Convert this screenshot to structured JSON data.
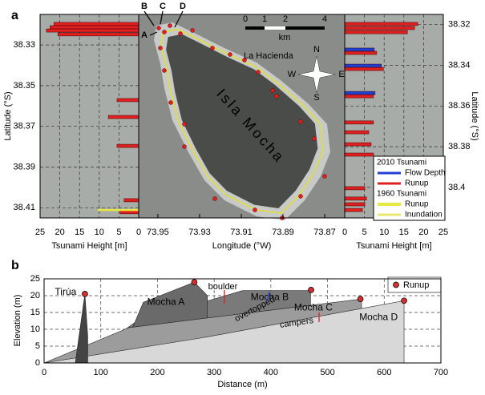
{
  "chart_data": [
    {
      "type": "barh",
      "panel": "a",
      "xlabel": "Tsunami Height [m]",
      "ylabel": "Latitude (°S)",
      "xlim": [
        25,
        0
      ],
      "xticks": [
        25,
        20,
        15,
        10,
        5,
        0
      ],
      "ylim": [
        38.315,
        38.415
      ],
      "yticks": [
        38.33,
        38.35,
        38.37,
        38.39,
        38.41
      ],
      "grid": true,
      "series": [
        {
          "color": "#e02020",
          "latitudes": [
            38.3197,
            38.3213,
            38.3229,
            38.3248,
            38.3571,
            38.3654,
            38.3796,
            38.4063,
            38.4122
          ],
          "values": [
            21.5,
            22.5,
            23.4,
            20.5,
            5.5,
            7.7,
            5.5,
            3.7,
            4.7
          ]
        },
        {
          "color": "#e8e840",
          "style": "line",
          "latitudes": [
            38.4111
          ],
          "values": [
            10.4
          ]
        }
      ]
    },
    {
      "type": "map",
      "xlabel": "Longitude (°W)",
      "xlim": [
        73.9592,
        73.8604
      ],
      "xticks": [
        73.95,
        73.93,
        73.91,
        73.89,
        73.87
      ],
      "site_labels": [
        "B",
        "C",
        "D",
        "A"
      ],
      "place": "La Hacienda",
      "island": "Isla Mocha",
      "scale_labels": [
        "0",
        "1",
        "2",
        "4"
      ],
      "scale_unit": "km",
      "compass": [
        "N",
        "S",
        "W",
        "E"
      ],
      "legend": [
        {
          "title": "2010 Tsunami",
          "entries": [
            {
              "name": "Flow Depth",
              "color": "#1f3fd0"
            },
            {
              "name": "Runup",
              "color": "#e02020"
            }
          ]
        },
        {
          "title": "1960 Tsunami",
          "entries": [
            {
              "name": "Runup",
              "color": "#e8e840"
            },
            {
              "name": "Inundation",
              "color": "#e8e870"
            }
          ]
        }
      ]
    },
    {
      "type": "barh",
      "xlabel": "Tsunami Height [m]",
      "ylabel": "Latitude (°S)",
      "xlim": [
        0,
        25
      ],
      "xticks": [
        0,
        5,
        10,
        15,
        20,
        25
      ],
      "ylim": [
        38.315,
        38.415
      ],
      "yticks": [
        38.32,
        38.34,
        38.36,
        38.38,
        38.4
      ],
      "grid": true,
      "series": [
        {
          "color": "#e02020",
          "latitudes": [
            38.3197,
            38.3217,
            38.3237,
            38.3339,
            38.3418,
            38.3552,
            38.3681,
            38.3729,
            38.3788,
            38.3839,
            38.4004,
            38.4055,
            38.4083,
            38.4111
          ],
          "values": [
            18.5,
            17.7,
            15.9,
            8.1,
            9.8,
            7.3,
            7.3,
            6.1,
            6.7,
            7.3,
            5.1,
            5.5,
            5.1,
            4.5
          ]
        },
        {
          "color": "#1f3fd0",
          "latitudes": [
            38.3323,
            38.3402,
            38.3536
          ],
          "values": [
            7.5,
            9.3,
            7.7
          ]
        }
      ]
    },
    {
      "type": "profile",
      "panel": "b",
      "xlabel": "Distance (m)",
      "ylabel": "Elevation (m)",
      "xlim": [
        0,
        700
      ],
      "xticks": [
        0,
        100,
        200,
        300,
        400,
        500,
        600,
        700
      ],
      "ylim": [
        0,
        25
      ],
      "yticks": [
        0,
        5,
        10,
        15,
        20,
        25
      ],
      "grid": true,
      "series": [
        {
          "name": "Mocha B",
          "color": "#7a7a7a",
          "x": [
            60,
            160,
            350,
            470,
            470
          ],
          "values": [
            0,
            12,
            21.5,
            21.5,
            0
          ]
        },
        {
          "name": "Mocha A",
          "color": "#6a6a6a",
          "x": [
            130,
            175,
            265,
            288,
            288
          ],
          "values": [
            0,
            18,
            24,
            20,
            0
          ]
        },
        {
          "name": "Mocha C",
          "color": "#9c9c9c",
          "x": [
            0,
            150,
            560,
            560
          ],
          "values": [
            0,
            10.5,
            19,
            0
          ]
        },
        {
          "name": "Mocha D",
          "color": "#d8d8d8",
          "x": [
            0,
            280,
            635,
            635
          ],
          "values": [
            0,
            7.5,
            18.5,
            0
          ]
        },
        {
          "name": "Tirúa",
          "color": "#444444",
          "x": [
            55,
            72,
            77,
            77
          ],
          "values": [
            0,
            20.5,
            8,
            0
          ]
        }
      ],
      "runup": {
        "name": "Runup",
        "color": "#d03030",
        "x": [
          72,
          265,
          471,
          558,
          635
        ],
        "values": [
          20.5,
          24,
          21.7,
          19,
          18.5
        ]
      },
      "annotations": [
        {
          "text": "boulder",
          "color": "#e02020"
        },
        {
          "text": "overtopped",
          "color": "#2040e0"
        },
        {
          "text": "campers",
          "color": "#e02020"
        }
      ]
    }
  ]
}
